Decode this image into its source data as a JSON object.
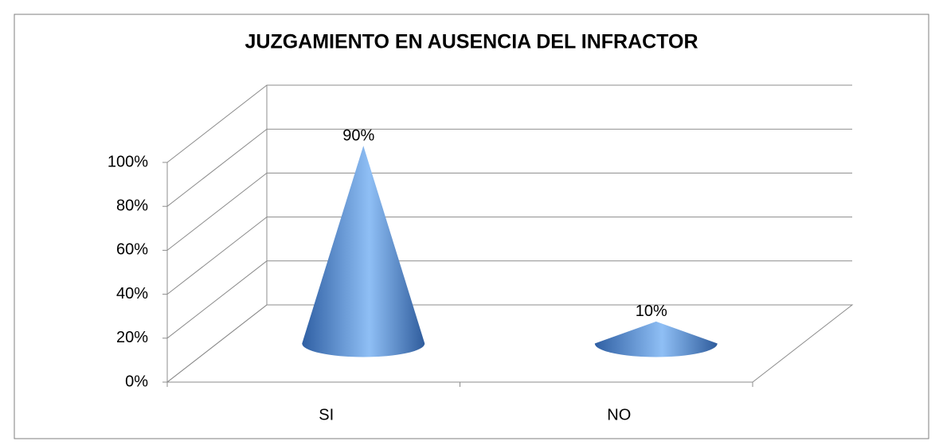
{
  "chart_data": {
    "type": "cone",
    "title": "JUZGAMIENTO EN AUSENCIA DEL INFRACTOR",
    "categories": [
      "SI",
      "NO"
    ],
    "values": [
      90,
      10
    ],
    "value_labels": [
      "90%",
      "10%"
    ],
    "color": "#4a7ec4",
    "ylim": [
      0,
      100
    ],
    "yticks": [
      {
        "value": 0,
        "label": "0%"
      },
      {
        "value": 20,
        "label": "20%"
      },
      {
        "value": 40,
        "label": "40%"
      },
      {
        "value": 60,
        "label": "60%"
      },
      {
        "value": 80,
        "label": "80%"
      },
      {
        "value": 100,
        "label": "100%"
      }
    ],
    "grid": true
  }
}
